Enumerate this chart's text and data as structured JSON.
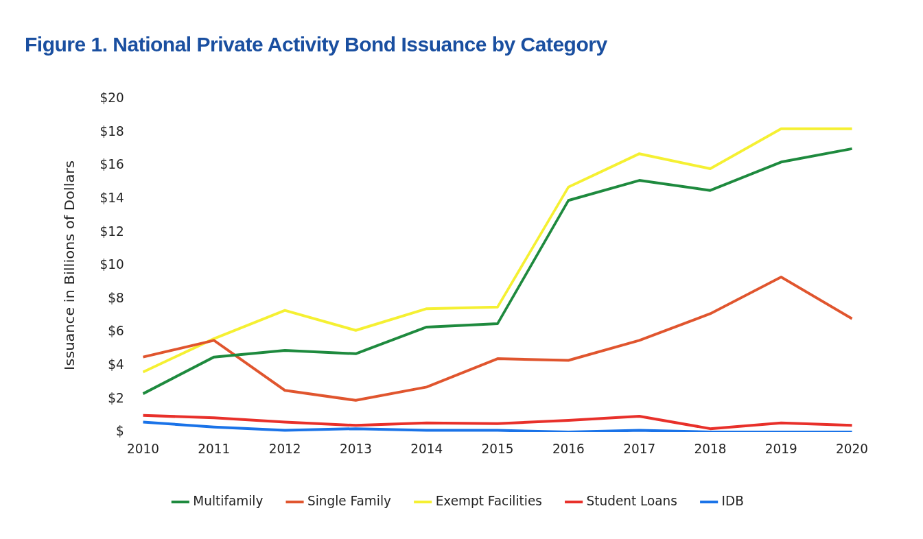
{
  "chart_data": {
    "type": "line",
    "title": "Figure 1. National Private Activity Bond Issuance by Category",
    "ylabel": "Issuance in Billions of Dollars",
    "categories": [
      "2010",
      "2011",
      "2012",
      "2013",
      "2014",
      "2015",
      "2016",
      "2017",
      "2018",
      "2019",
      "2020"
    ],
    "series": [
      {
        "name": "Multifamily",
        "color": "#1e8a3e",
        "values": [
          2.3,
          4.5,
          4.9,
          4.7,
          6.3,
          6.5,
          13.9,
          15.1,
          14.5,
          16.2,
          17.0
        ]
      },
      {
        "name": "Single Family",
        "color": "#e0552e",
        "values": [
          4.5,
          5.5,
          2.5,
          1.9,
          2.7,
          4.4,
          4.3,
          5.5,
          7.1,
          9.3,
          6.8
        ]
      },
      {
        "name": "Exempt Facilities",
        "color": "#f5f032",
        "values": [
          3.6,
          5.6,
          7.3,
          6.1,
          7.4,
          7.5,
          14.7,
          16.7,
          15.8,
          18.2,
          18.2
        ]
      },
      {
        "name": "Student Loans",
        "color": "#e8302a",
        "values": [
          1.0,
          0.85,
          0.6,
          0.4,
          0.55,
          0.5,
          0.7,
          0.95,
          0.2,
          0.55,
          0.4
        ]
      },
      {
        "name": "IDB",
        "color": "#1a73e8",
        "values": [
          0.6,
          0.3,
          0.1,
          0.2,
          0.1,
          0.1,
          0.0,
          0.1,
          0.0,
          0.0,
          0.0
        ]
      }
    ],
    "ylim": [
      0,
      20
    ],
    "yticks": [
      {
        "value": 0,
        "label": "$"
      },
      {
        "value": 2,
        "label": "$2"
      },
      {
        "value": 4,
        "label": "$4"
      },
      {
        "value": 6,
        "label": "$6"
      },
      {
        "value": 8,
        "label": "$8"
      },
      {
        "value": 10,
        "label": "$10"
      },
      {
        "value": 12,
        "label": "$12"
      },
      {
        "value": 14,
        "label": "$14"
      },
      {
        "value": 16,
        "label": "$16"
      },
      {
        "value": 18,
        "label": "$18"
      },
      {
        "value": 20,
        "label": "$20"
      }
    ],
    "grid": false,
    "legend": "bottom",
    "marker": "none",
    "line_style": "solid"
  }
}
